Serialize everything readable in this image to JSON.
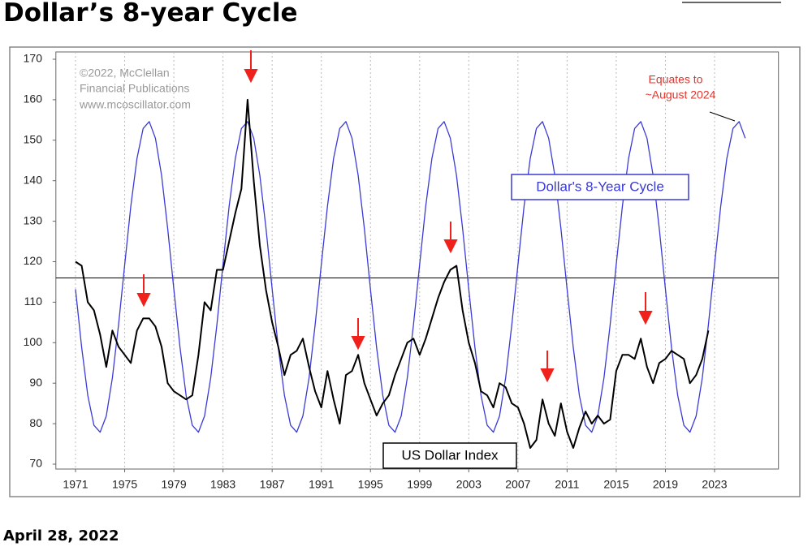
{
  "title": "Dollar’s 8-year Cycle",
  "date": "April 28, 2022",
  "chart_data": {
    "type": "line",
    "xlim": [
      1969.4,
      2028.2
    ],
    "xticks": [
      1971,
      1975,
      1979,
      1983,
      1987,
      1991,
      1995,
      1999,
      2003,
      2007,
      2011,
      2015,
      2019,
      2023
    ],
    "ylim": [
      70,
      170
    ],
    "yticks": [
      70,
      80,
      90,
      100,
      110,
      120,
      130,
      140,
      150,
      160,
      170
    ],
    "grid": "x",
    "reference_line": 116,
    "annotations": {
      "credit": [
        "©2022, McClellan",
        "Financial Publications",
        "www.mcoscillator.com"
      ],
      "note": [
        "Equates to",
        "~August 2024"
      ]
    },
    "series": [
      {
        "name": "US Dollar Index",
        "color": "#000000",
        "x": [
          1971,
          1971.5,
          1972,
          1972.5,
          1973,
          1973.5,
          1974,
          1974.5,
          1975,
          1975.5,
          1976,
          1976.5,
          1977,
          1977.5,
          1978,
          1978.5,
          1979,
          1979.5,
          1980,
          1980.5,
          1981,
          1981.5,
          1982,
          1982.5,
          1983,
          1983.5,
          1984,
          1984.5,
          1985,
          1985.5,
          1986,
          1986.5,
          1987,
          1987.5,
          1988,
          1988.5,
          1989,
          1989.5,
          1990,
          1990.5,
          1991,
          1991.5,
          1992,
          1992.5,
          1993,
          1993.5,
          1994,
          1994.5,
          1995,
          1995.5,
          1996,
          1996.5,
          1997,
          1997.5,
          1998,
          1998.5,
          1999,
          1999.5,
          2000,
          2000.5,
          2001,
          2001.5,
          2002,
          2002.5,
          2003,
          2003.5,
          2004,
          2004.5,
          2005,
          2005.5,
          2006,
          2006.5,
          2007,
          2007.5,
          2008,
          2008.5,
          2009,
          2009.5,
          2010,
          2010.5,
          2011,
          2011.5,
          2012,
          2012.5,
          2013,
          2013.5,
          2014,
          2014.5,
          2015,
          2015.5,
          2016,
          2016.5,
          2017,
          2017.5,
          2018,
          2018.5,
          2019,
          2019.5,
          2020,
          2020.5,
          2021,
          2021.5,
          2022,
          2022.5
        ],
        "values": [
          120,
          119,
          110,
          108,
          102,
          94,
          103,
          99,
          97,
          95,
          103,
          106,
          106,
          104,
          99,
          90,
          88,
          87,
          86,
          87,
          97,
          110,
          108,
          118,
          118,
          125,
          132,
          138,
          160,
          140,
          124,
          113,
          105,
          99,
          92,
          97,
          98,
          101,
          94,
          88,
          84,
          93,
          86,
          80,
          92,
          93,
          97,
          90,
          86,
          82,
          85,
          87,
          92,
          96,
          100,
          101,
          97,
          101,
          106,
          111,
          115,
          118,
          119,
          108,
          100,
          95,
          88,
          87,
          84,
          90,
          89,
          85,
          84,
          80,
          74,
          76,
          86,
          80,
          77,
          85,
          78,
          74,
          79,
          83,
          80,
          82,
          80,
          81,
          93,
          97,
          97,
          96,
          101,
          94,
          90,
          95,
          96,
          98,
          97,
          96,
          90,
          92,
          96,
          103
        ]
      },
      {
        "name": "Dollar's 8-Year Cycle",
        "color": "#3a3ad6",
        "x": [
          1971,
          1971.5,
          1972,
          1972.5,
          1973,
          1973.5,
          1974,
          1974.5,
          1975,
          1975.5,
          1976,
          1976.5,
          1977,
          1977.5,
          1978,
          1978.5,
          1979,
          1979.5,
          1980,
          1980.5,
          1981,
          1981.5,
          1982,
          1982.5,
          1983,
          1983.5,
          1984,
          1984.5,
          1985,
          1985.5,
          1986,
          1986.5,
          1987,
          1987.5,
          1988,
          1988.5,
          1989,
          1989.5,
          1990,
          1990.5,
          1991,
          1991.5,
          1992,
          1992.5,
          1993,
          1993.5,
          1994,
          1994.5,
          1995,
          1995.5,
          1996,
          1996.5,
          1997,
          1997.5,
          1998,
          1998.5,
          1999,
          1999.5,
          2000,
          2000.5,
          2001,
          2001.5,
          2002,
          2002.5,
          2003,
          2003.5,
          2004,
          2004.5,
          2005,
          2005.5,
          2006,
          2006.5,
          2007,
          2007.5,
          2008,
          2008.5,
          2009,
          2009.5,
          2010,
          2010.5,
          2011,
          2011.5,
          2012,
          2012.5,
          2013,
          2013.5,
          2014,
          2014.5,
          2015,
          2015.5,
          2016,
          2016.5,
          2017,
          2017.5,
          2018,
          2018.5,
          2019,
          2019.5,
          2020,
          2020.5,
          2021,
          2021.5,
          2022,
          2022.5,
          2023,
          2023.5,
          2024,
          2024.5,
          2025,
          2025.5
        ],
        "values": [
          113.2,
          98.8,
          87.0,
          79.6,
          77.9,
          81.9,
          91.3,
          104.4,
          119.3,
          133.7,
          145.5,
          152.9,
          154.6,
          150.5,
          141.3,
          128.2,
          113.2,
          98.8,
          87.0,
          79.6,
          77.9,
          81.9,
          91.3,
          104.4,
          119.3,
          133.7,
          145.5,
          152.9,
          154.6,
          150.5,
          141.3,
          128.2,
          113.2,
          98.8,
          87.0,
          79.6,
          77.9,
          81.9,
          91.3,
          104.4,
          119.3,
          133.7,
          145.5,
          152.9,
          154.6,
          150.5,
          141.3,
          128.2,
          113.2,
          98.8,
          87.0,
          79.6,
          77.9,
          81.9,
          91.3,
          104.4,
          119.3,
          133.7,
          145.5,
          152.9,
          154.6,
          150.5,
          141.3,
          128.2,
          113.2,
          98.8,
          87.0,
          79.6,
          77.9,
          81.9,
          91.3,
          104.4,
          119.3,
          133.7,
          145.5,
          152.9,
          154.6,
          150.5,
          141.3,
          128.2,
          113.2,
          98.8,
          87.0,
          79.6,
          77.9,
          81.9,
          91.3,
          104.4,
          119.3,
          133.7,
          145.5,
          152.9,
          154.6,
          150.5,
          141.3,
          128.2,
          113.2,
          98.8,
          87.0,
          79.6,
          77.9,
          81.9,
          91.3,
          104.4,
          119.3,
          133.7,
          145.5,
          152.9,
          154.6,
          150.5
        ]
      }
    ]
  }
}
